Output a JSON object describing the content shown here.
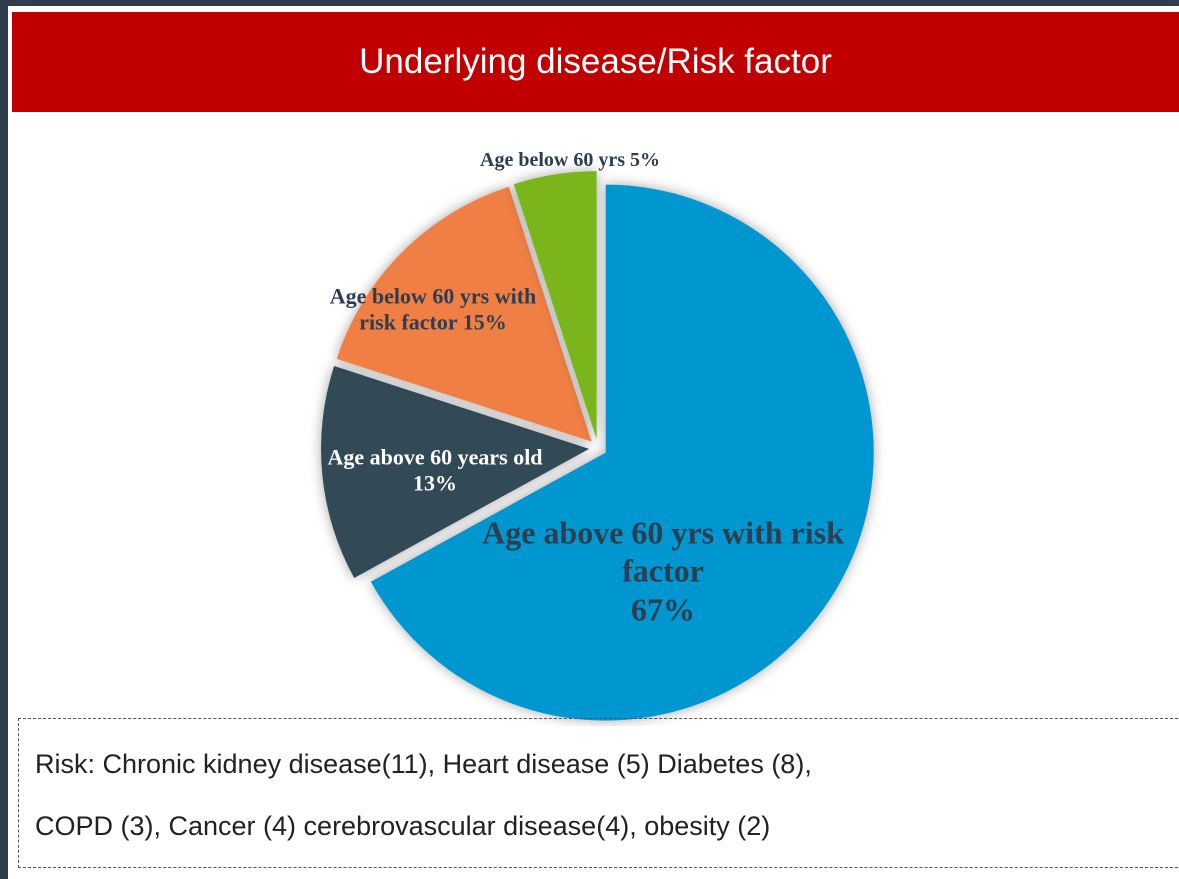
{
  "chart_data": {
    "type": "pie",
    "title": "Underlying disease/Risk factor",
    "categories": [
      "Age above 60 yrs with risk factor",
      "Age above 60 years old",
      "Age below 60 yrs with risk factor",
      "Age below 60 yrs"
    ],
    "values": [
      67,
      13,
      15,
      5
    ],
    "value_labels": [
      "67%",
      "13%",
      "15%",
      "5%"
    ],
    "colors": [
      "#0096d0",
      "#304857",
      "#ef7f45",
      "#7ab51d"
    ]
  },
  "note": {
    "lines": [
      "Risk: Chronic kidney disease(11), Heart disease (5) Diabetes (8),",
      "COPD (3), Cancer (4) cerebrovascular disease(4), obesity (2)"
    ]
  }
}
